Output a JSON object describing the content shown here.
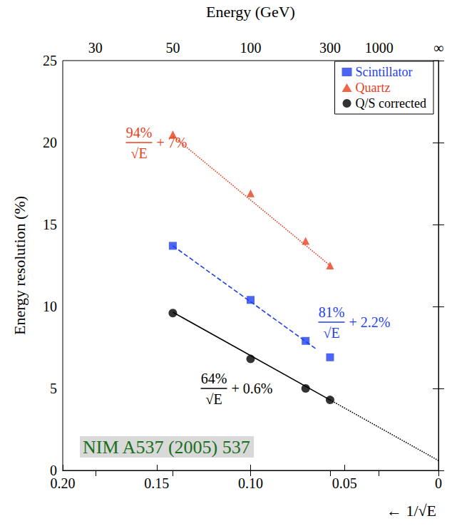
{
  "chart_data": {
    "type": "scatter",
    "x_label": "← 1/√E",
    "x2_label": "Energy (GeV)",
    "y_label": "Energy resolution (%)",
    "xlim": [
      0.2,
      0
    ],
    "xticks": [
      {
        "value": 0.2,
        "label": "0.20"
      },
      0.15,
      {
        "value": 0.1,
        "label": "0.10"
      },
      0.05,
      0
    ],
    "x2lim": [
      0.2,
      0
    ],
    "x2ticks": [
      {
        "value": 0.1826,
        "label": "30"
      },
      {
        "value": 0.1414,
        "label": "50"
      },
      {
        "value": 0.1,
        "label": "100"
      },
      {
        "value": 0.0577,
        "label": "300"
      },
      {
        "value": 0.0316,
        "label": "1000"
      },
      {
        "value": 0,
        "label": "∞"
      }
    ],
    "ylim": [
      0,
      25
    ],
    "yticks": [
      0,
      5,
      10,
      15,
      20,
      25
    ],
    "grid": false,
    "legend": "upper right",
    "series": [
      {
        "name": "Scintillator",
        "color": "#1f3ff0",
        "marker": "square",
        "x": [
          0.1414,
          0.1,
          0.0707,
          0.0577
        ],
        "values": [
          13.7,
          10.4,
          7.9,
          6.9
        ],
        "fits": [
          {
            "x": [
              0.1414,
              0.065
            ],
            "values": [
              13.7,
              7.4
            ],
            "line_style": "dashed"
          }
        ]
      },
      {
        "name": "Quartz",
        "color": "#e8401c",
        "marker": "triangle",
        "x": [
          0.1414,
          0.1,
          0.0707,
          0.0577
        ],
        "values": [
          20.5,
          16.9,
          14.0,
          12.5
        ],
        "fits": [
          {
            "x": [
              0.1414,
              0.0577
            ],
            "values": [
              20.4,
              12.5
            ],
            "line_style": "dotted"
          }
        ]
      },
      {
        "name": "Q/S corrected",
        "color": "#000000",
        "marker": "circle",
        "x": [
          0.1414,
          0.1,
          0.0707,
          0.0577
        ],
        "values": [
          9.6,
          6.8,
          5.0,
          4.3
        ],
        "fits": [
          {
            "x": [
              0.1414,
              0.0577
            ],
            "values": [
              9.65,
              4.3
            ],
            "line_style": "solid"
          },
          {
            "x": [
              0.0577,
              0
            ],
            "values": [
              4.3,
              0.6
            ],
            "line_style": "dotted"
          }
        ]
      }
    ],
    "annotations": [
      {
        "numerator": "94%",
        "denominator": "√E",
        "suffix": "+ 7%",
        "color": "#e8401c"
      },
      {
        "numerator": "81%",
        "denominator": "√E",
        "suffix": "+ 2.2%",
        "color": "#1f3ff0"
      },
      {
        "numerator": "64%",
        "denominator": "√E",
        "suffix": "+ 0.6%",
        "color": "#000000"
      }
    ],
    "source": "NIM A537 (2005) 537"
  }
}
